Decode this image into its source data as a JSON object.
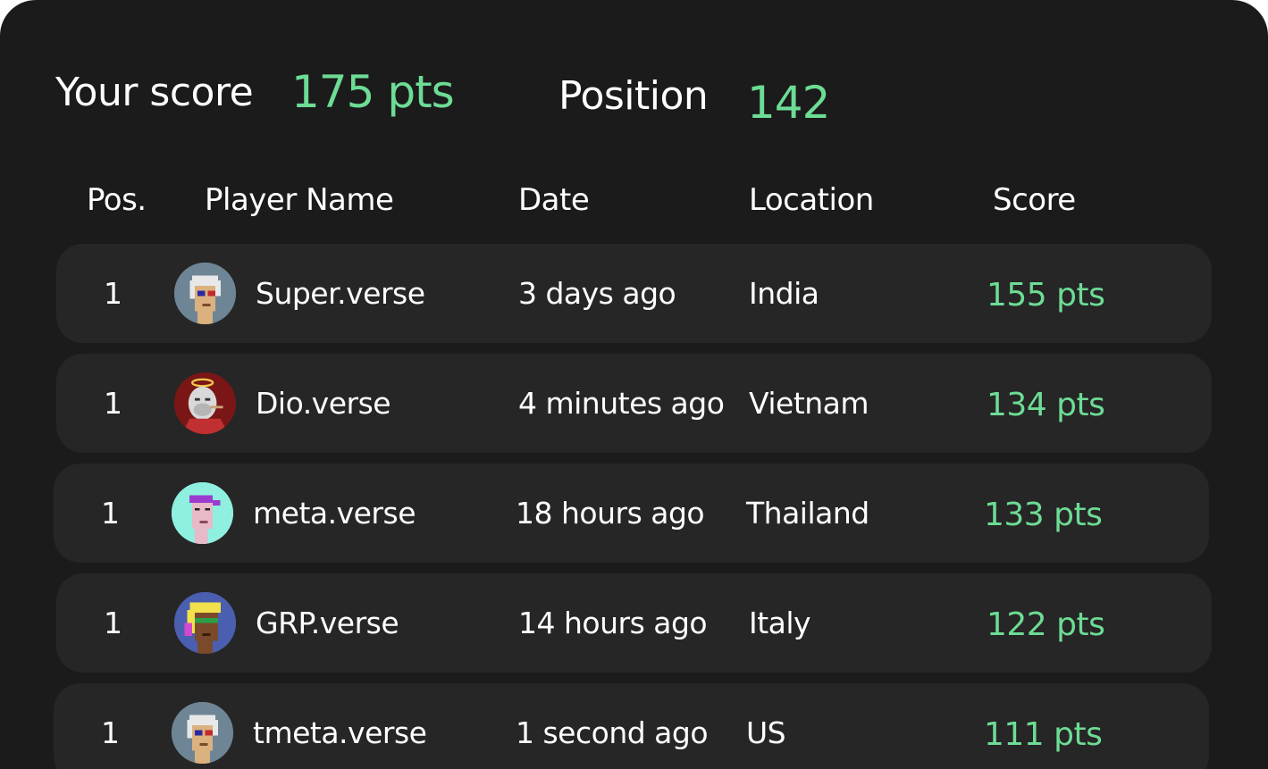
{
  "summary": {
    "score_label": "Your score",
    "score_value": "175 pts",
    "position_label": "Position",
    "position_value": "142"
  },
  "table": {
    "columns": [
      "Pos.",
      "Player Name",
      "Date",
      "Location",
      "Score"
    ],
    "rows": [
      {
        "pos": "1",
        "name": "Super.verse",
        "date": "3 days ago",
        "location": "India",
        "score": "155 pts",
        "avatar": "pixel-punk-white-hair-avatar",
        "avatar_bg": "#6e8596"
      },
      {
        "pos": "1",
        "name": "Dio.verse",
        "date": "4 minutes ago",
        "location": "Vietnam",
        "score": "134 pts",
        "avatar": "ape-halo-avatar",
        "avatar_bg": "#8a1c1c"
      },
      {
        "pos": "1",
        "name": "meta.verse",
        "date": "18 hours ago",
        "location": "Thailand",
        "score": "133 pts",
        "avatar": "pixel-punk-purple-cap-avatar",
        "avatar_bg": "#8ff0df"
      },
      {
        "pos": "1",
        "name": "GRP.verse",
        "date": "14 hours ago",
        "location": "Italy",
        "score": "122 pts",
        "avatar": "pixel-punk-yellow-hair-avatar",
        "avatar_bg": "#4a5fb0"
      },
      {
        "pos": "1",
        "name": "tmeta.verse",
        "date": "1 second ago",
        "location": "US",
        "score": "111 pts",
        "avatar": "pixel-punk-white-hair-avatar",
        "avatar_bg": "#6e8596"
      }
    ]
  },
  "colors": {
    "background": "#1b1b1b",
    "row": "#262626",
    "accent": "#6ddc95",
    "text": "#ffffff"
  }
}
